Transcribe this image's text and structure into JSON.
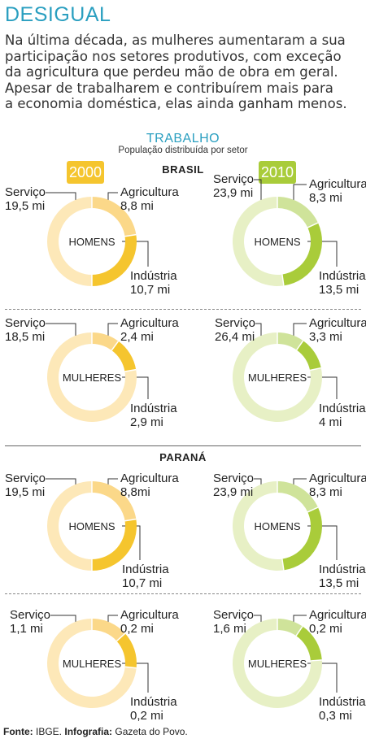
{
  "header": {
    "title": "DESIGUAL",
    "intro_lines": [
      "Na última década, as mulheres aumentaram a sua",
      "participação nos setores produtivos, com exceção",
      "da agricultura que perdeu mão de obra em geral.",
      "Apesar de trabalharem e contribuírem mais para",
      "a economia doméstica, elas ainda ganham menos."
    ]
  },
  "section": {
    "title": "TRABALHO",
    "subtitle": "População distribuída por setor",
    "year_2000": "2000",
    "year_2010": "2010",
    "region_brasil": "BRASIL",
    "region_parana": "PARANÁ"
  },
  "colors": {
    "accent": "#2a9fc0",
    "y2000_light": "#fde8b8",
    "y2000_mid": "#fbd889",
    "y2000_dark": "#f5c52e",
    "y2000_badge": "#f5c52e",
    "y2010_light": "#e7f0c5",
    "y2010_mid": "#cfe39a",
    "y2010_dark": "#a9cc3a",
    "y2010_badge": "#a9cc3a"
  },
  "chart_data": [
    {
      "type": "pie",
      "region": "BRASIL",
      "year": "2000",
      "group": "HOMENS",
      "categories": [
        "Serviço",
        "Agricultura",
        "Indústria"
      ],
      "values": [
        19.5,
        8.8,
        10.7
      ],
      "labels": [
        "19,5 mi",
        "8,8 mi",
        "10,7 mi"
      ]
    },
    {
      "type": "pie",
      "region": "BRASIL",
      "year": "2010",
      "group": "HOMENS",
      "categories": [
        "Serviço",
        "Agricultura",
        "Indústria"
      ],
      "values": [
        23.9,
        8.3,
        13.5
      ],
      "labels": [
        "23,9 mi",
        "8,3 mi",
        "13,5 mi"
      ]
    },
    {
      "type": "pie",
      "region": "BRASIL",
      "year": "2000",
      "group": "MULHERES",
      "categories": [
        "Serviço",
        "Agricultura",
        "Indústria"
      ],
      "values": [
        18.5,
        2.4,
        2.9
      ],
      "labels": [
        "18,5 mi",
        "2,4 mi",
        "2,9 mi"
      ]
    },
    {
      "type": "pie",
      "region": "BRASIL",
      "year": "2010",
      "group": "MULHERES",
      "categories": [
        "Serviço",
        "Agricultura",
        "Indústria"
      ],
      "values": [
        26.4,
        3.3,
        4
      ],
      "labels": [
        "26,4 mi",
        "3,3 mi",
        "4 mi"
      ]
    },
    {
      "type": "pie",
      "region": "PARANÁ",
      "year": "2000",
      "group": "HOMENS",
      "categories": [
        "Serviço",
        "Agricultura",
        "Indústria"
      ],
      "values": [
        19.5,
        8.8,
        10.7
      ],
      "labels": [
        "19,5 mi",
        "8,8mi",
        "10,7 mi"
      ]
    },
    {
      "type": "pie",
      "region": "PARANÁ",
      "year": "2010",
      "group": "HOMENS",
      "categories": [
        "Serviço",
        "Agricultura",
        "Indústria"
      ],
      "values": [
        23.9,
        8.3,
        13.5
      ],
      "labels": [
        "23,9 mi",
        "8,3 mi",
        "13,5 mi"
      ]
    },
    {
      "type": "pie",
      "region": "PARANÁ",
      "year": "2000",
      "group": "MULHERES",
      "categories": [
        "Serviço",
        "Agricultura",
        "Indústria"
      ],
      "values": [
        1.1,
        0.2,
        0.2
      ],
      "labels": [
        "1,1 mi",
        "0,2 mi",
        "0,2 mi"
      ]
    },
    {
      "type": "pie",
      "region": "PARANÁ",
      "year": "2010",
      "group": "MULHERES",
      "categories": [
        "Serviço",
        "Agricultura",
        "Indústria"
      ],
      "values": [
        1.6,
        0.2,
        0.3
      ],
      "labels": [
        "1,6 mi",
        "0,2 mi",
        "0,3 mi"
      ]
    }
  ],
  "footer": {
    "source_label": "Fonte:",
    "source_value": "IBGE.",
    "credit_label": "Infografia:",
    "credit_value": "Gazeta do Povo."
  }
}
